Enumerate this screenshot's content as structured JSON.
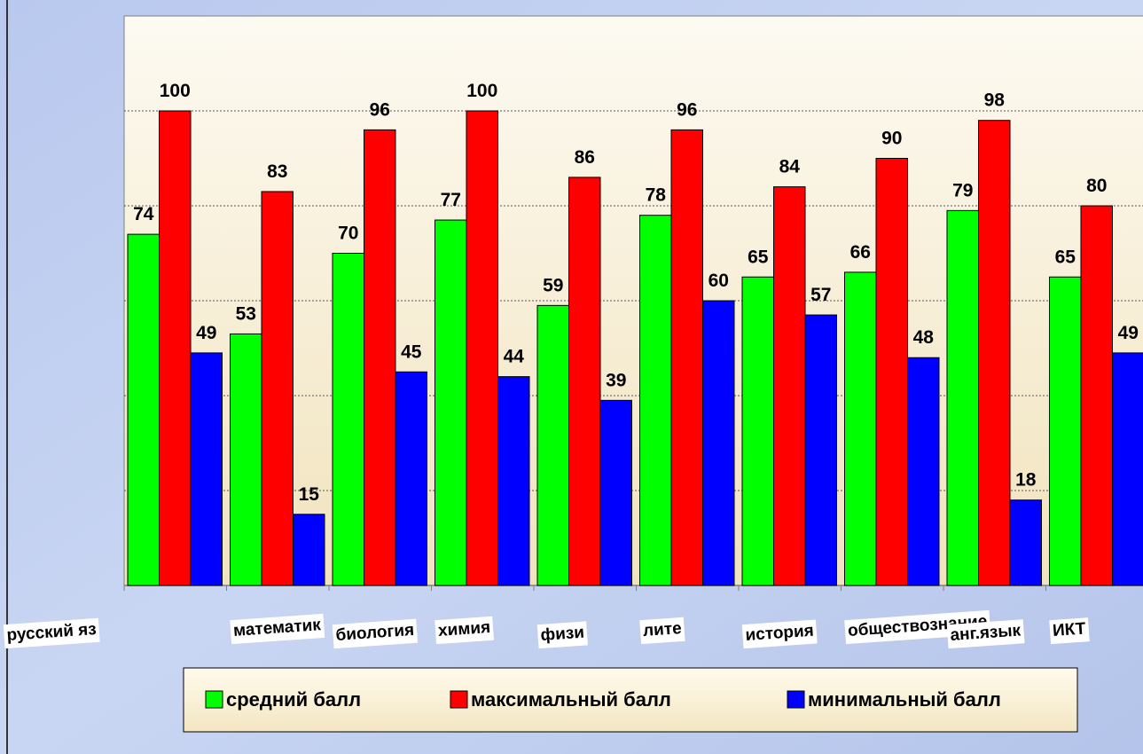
{
  "chart_data": {
    "type": "bar",
    "categories": [
      "русский яз",
      "математик",
      "биология",
      "химия",
      "физи",
      "лите",
      "история",
      "обществознание",
      "анг.язык",
      "ИКТ"
    ],
    "series": [
      {
        "name": "средний балл",
        "color": "#00ff00",
        "values": [
          74,
          53,
          70,
          77,
          59,
          78,
          65,
          66,
          79,
          65
        ]
      },
      {
        "name": "максимальный балл",
        "color": "#ff0000",
        "values": [
          100,
          83,
          96,
          100,
          86,
          96,
          84,
          90,
          98,
          80
        ]
      },
      {
        "name": "минимальный балл",
        "color": "#0000ff",
        "values": [
          49,
          15,
          45,
          44,
          39,
          60,
          57,
          48,
          18,
          49
        ]
      }
    ],
    "ylim": [
      0,
      120
    ],
    "yticks": [
      20,
      40,
      60,
      80,
      100
    ],
    "grid": true,
    "legend": "bottom"
  }
}
